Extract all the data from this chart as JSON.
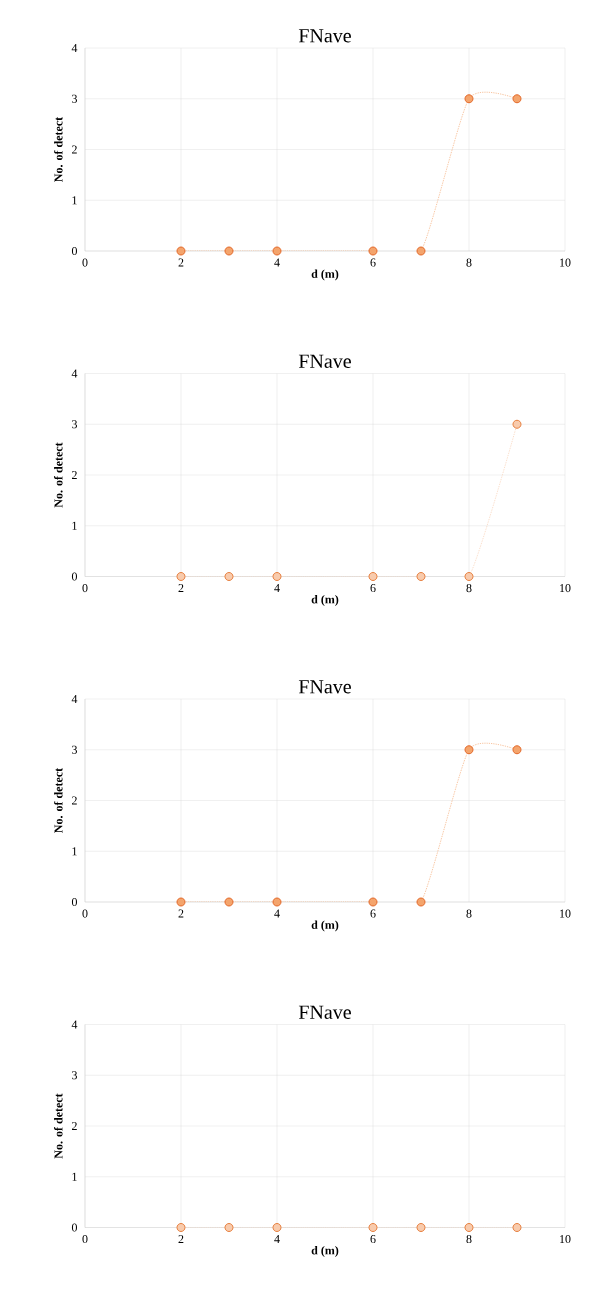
{
  "chart_data": [
    {
      "type": "line",
      "title": "FNave",
      "xlabel": "d (m)",
      "ylabel": "No. of detect",
      "x": [
        2,
        3,
        4,
        6,
        7,
        8,
        9
      ],
      "series": [
        {
          "color": "#f4a46c",
          "values": [
            0,
            0,
            0,
            0,
            0,
            3,
            3
          ]
        }
      ],
      "xlim": [
        0,
        10
      ],
      "ylim": [
        0,
        4
      ],
      "xticks": [
        0,
        2,
        4,
        6,
        8,
        10
      ],
      "yticks": [
        0,
        1,
        2,
        3,
        4
      ],
      "grid": true,
      "marker": "circle",
      "line_style": "dotted"
    },
    {
      "type": "line",
      "title": "FNave",
      "xlabel": "d (m)",
      "ylabel": "No. of detect",
      "x": [
        2,
        3,
        4,
        6,
        7,
        8,
        9
      ],
      "series": [
        {
          "color": "#f8cbad",
          "values": [
            0,
            0,
            0,
            0,
            0,
            0,
            3
          ]
        }
      ],
      "xlim": [
        0,
        10
      ],
      "ylim": [
        0,
        4
      ],
      "xticks": [
        0,
        2,
        4,
        6,
        8,
        10
      ],
      "yticks": [
        0,
        1,
        2,
        3,
        4
      ],
      "grid": true,
      "marker": "circle",
      "line_style": "dotted"
    },
    {
      "type": "line",
      "title": "FNave",
      "xlabel": "d (m)",
      "ylabel": "No. of detect",
      "x": [
        2,
        3,
        4,
        6,
        7,
        8,
        9
      ],
      "series": [
        {
          "color": "#f4a46c",
          "values": [
            0,
            0,
            0,
            0,
            0,
            3,
            3
          ]
        }
      ],
      "xlim": [
        0,
        10
      ],
      "ylim": [
        0,
        4
      ],
      "xticks": [
        0,
        2,
        4,
        6,
        8,
        10
      ],
      "yticks": [
        0,
        1,
        2,
        3,
        4
      ],
      "grid": true,
      "marker": "circle",
      "line_style": "dotted"
    },
    {
      "type": "line",
      "title": "FNave",
      "xlabel": "d (m)",
      "ylabel": "No. of detect",
      "x": [
        2,
        3,
        4,
        6,
        7,
        8,
        9
      ],
      "series": [
        {
          "color": "#f8cbad",
          "values": [
            0,
            0,
            0,
            0,
            0,
            0,
            0
          ]
        }
      ],
      "xlim": [
        0,
        10
      ],
      "ylim": [
        0,
        4
      ],
      "xticks": [
        0,
        2,
        4,
        6,
        8,
        10
      ],
      "yticks": [
        0,
        1,
        2,
        3,
        4
      ],
      "grid": true,
      "marker": "circle",
      "line_style": "dotted"
    }
  ]
}
